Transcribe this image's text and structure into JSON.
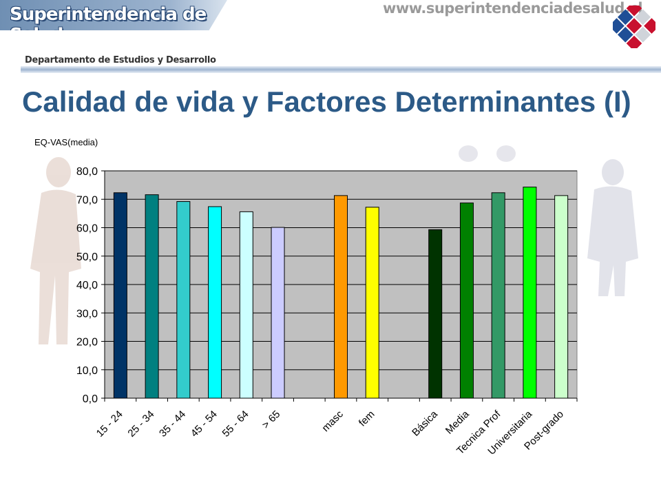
{
  "header": {
    "brand": "Superintendencia de Salud",
    "url": "www.superintendenciadesalud.cl",
    "department": "Departamento de Estudios y Desarrollo",
    "logo_icon": "cube-grid-logo-icon"
  },
  "slide": {
    "title": "Calidad de vida y Factores Determinantes (I)"
  },
  "colors": {
    "title": "#2c5a87",
    "plot_background": "#c0c0c0"
  },
  "chart_data": {
    "type": "bar",
    "title": "",
    "xlabel": "",
    "ylabel": "EQ-VAS(media)",
    "ylim": [
      0,
      80
    ],
    "yticks": [
      "0,0",
      "10,0",
      "20,0",
      "30,0",
      "40,0",
      "50,0",
      "60,0",
      "70,0",
      "80,0"
    ],
    "grid": true,
    "categories": [
      "15 - 24",
      "25 - 34",
      "35 - 44",
      "45 - 54",
      "55 - 64",
      "> 65",
      "",
      "masc",
      "fem",
      "",
      "Básica",
      "Media",
      "Tecnica Prof",
      "Universitaria",
      "Post-grado"
    ],
    "values": [
      72.3,
      71.6,
      69.2,
      67.4,
      65.6,
      60.1,
      null,
      71.3,
      67.2,
      null,
      59.3,
      68.7,
      72.3,
      74.3,
      71.3
    ],
    "colors": [
      "#003366",
      "#008080",
      "#33cccc",
      "#00ffff",
      "#ccffff",
      "#ccccff",
      null,
      "#ff9900",
      "#ffff00",
      null,
      "#003300",
      "#008000",
      "#339966",
      "#00ff00",
      "#ccffcc"
    ]
  }
}
